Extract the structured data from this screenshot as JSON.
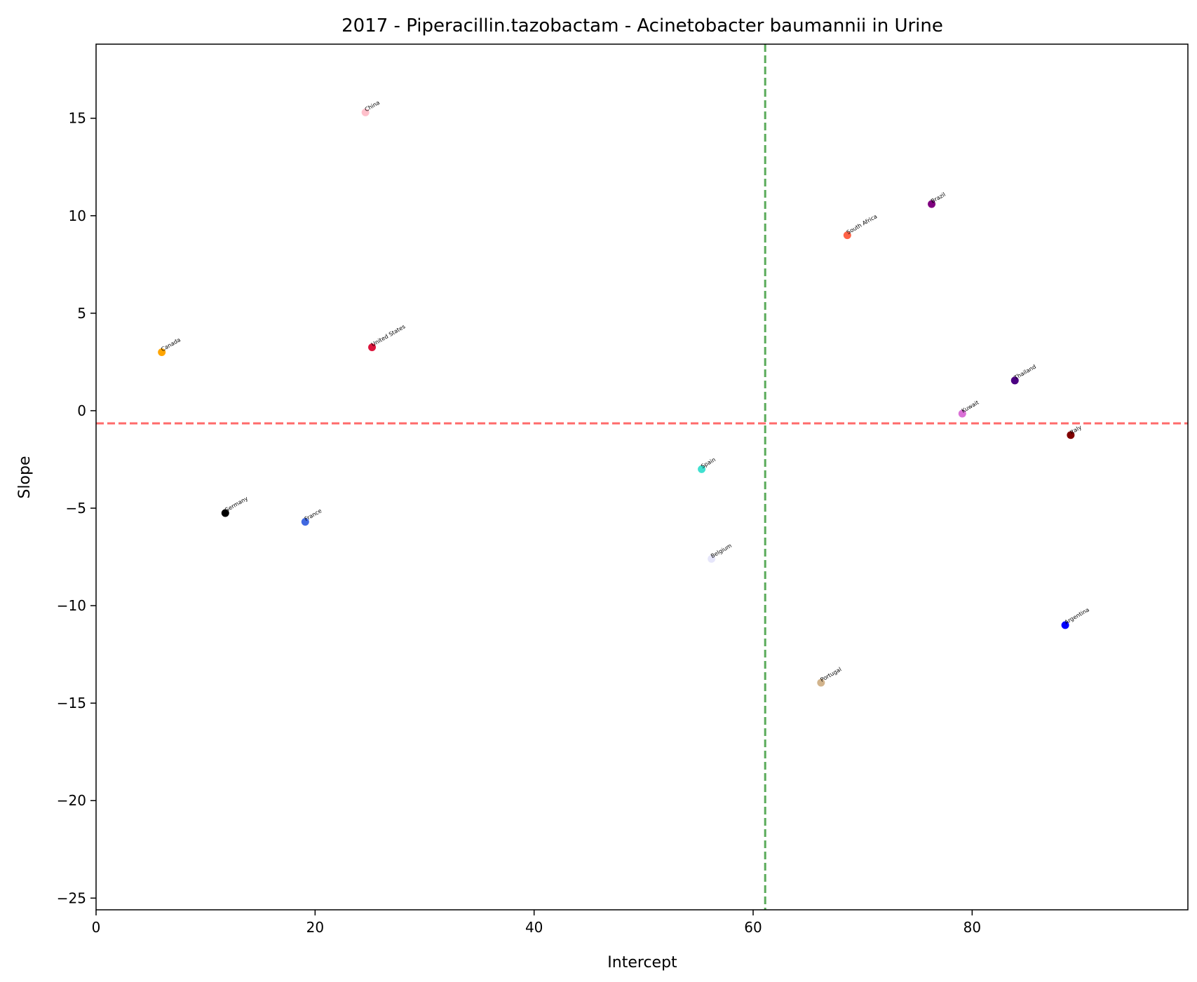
{
  "chart_data": {
    "type": "scatter",
    "title": "2017 - Piperacillin.tazobactam - Acinetobacter baumannii in Urine",
    "xlabel": "Intercept",
    "ylabel": "Slope",
    "xlim": [
      0,
      99.7
    ],
    "ylim": [
      -25.6,
      18.8
    ],
    "xticks": [
      0,
      20,
      40,
      60,
      80
    ],
    "yticks": [
      15,
      10,
      5,
      0,
      -5,
      -10,
      -15,
      -20,
      -25
    ],
    "grid": false,
    "reference_lines": {
      "vertical_x": 61.1,
      "vertical_color": "#5aab5a",
      "horizontal_y": -0.65,
      "horizontal_color": "#ff6b6b"
    },
    "points": [
      {
        "label": "China",
        "x": 24.6,
        "y": 15.3,
        "color": "#ffc0cb"
      },
      {
        "label": "Brazil",
        "x": 76.3,
        "y": 10.6,
        "color": "#800080"
      },
      {
        "label": "South Africa",
        "x": 68.6,
        "y": 9.0,
        "color": "#ff6347"
      },
      {
        "label": "Canada",
        "x": 6.0,
        "y": 3.0,
        "color": "#ffa500"
      },
      {
        "label": "United States",
        "x": 25.2,
        "y": 3.25,
        "color": "#dc143c"
      },
      {
        "label": "Thailand",
        "x": 83.9,
        "y": 1.55,
        "color": "#4b0082"
      },
      {
        "label": "Kuwait",
        "x": 79.1,
        "y": -0.15,
        "color": "#da70d6"
      },
      {
        "label": "Italy",
        "x": 89.0,
        "y": -1.25,
        "color": "#800000"
      },
      {
        "label": "Spain",
        "x": 55.3,
        "y": -3.0,
        "color": "#40e0d0"
      },
      {
        "label": "Germany",
        "x": 11.8,
        "y": -5.25,
        "color": "#000000"
      },
      {
        "label": "France",
        "x": 19.1,
        "y": -5.7,
        "color": "#4169e1"
      },
      {
        "label": "Belgium",
        "x": 56.2,
        "y": -7.6,
        "color": "#e6e6fa"
      },
      {
        "label": "Argentina",
        "x": 88.5,
        "y": -11.0,
        "color": "#0000ff"
      },
      {
        "label": "Portugal",
        "x": 66.2,
        "y": -13.95,
        "color": "#d2b48c"
      }
    ]
  }
}
